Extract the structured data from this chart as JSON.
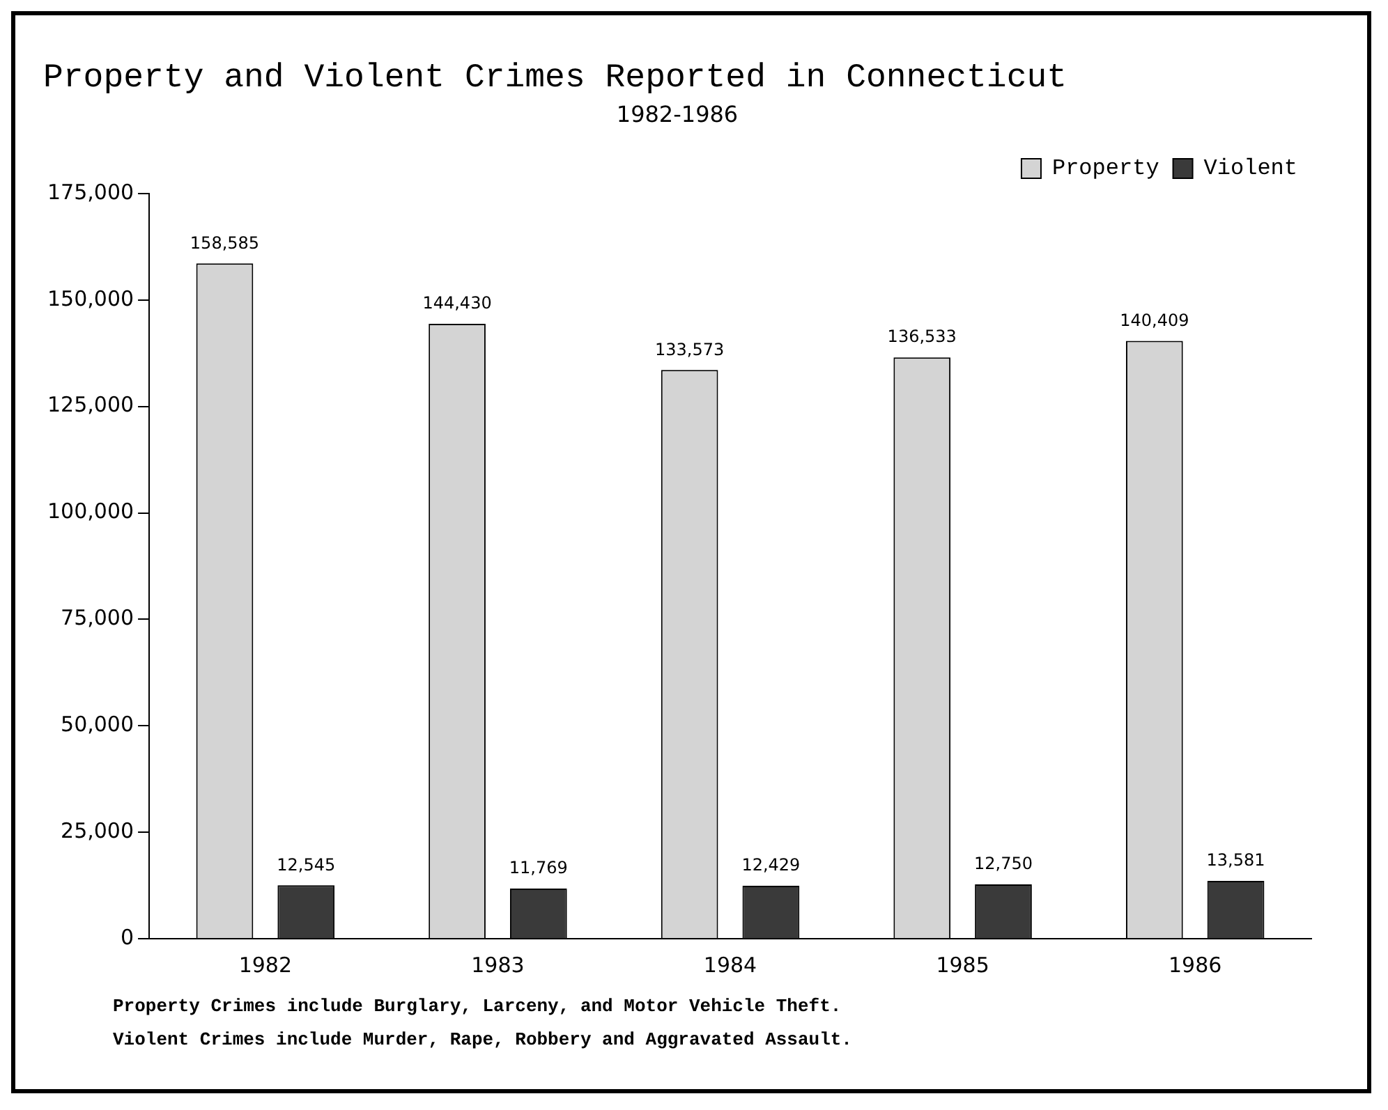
{
  "chart_data": {
    "type": "bar",
    "title": "Property and Violent Crimes Reported in Connecticut",
    "subtitle": "1982-1986",
    "categories": [
      "1982",
      "1983",
      "1984",
      "1985",
      "1986"
    ],
    "series": [
      {
        "name": "Property",
        "color": "#d4d4d4",
        "values": [
          158585,
          144430,
          133573,
          136533,
          140409
        ],
        "value_labels": [
          "158,585",
          "144,430",
          "133,573",
          "136,533",
          "140,409"
        ]
      },
      {
        "name": "Violent",
        "color": "#3a3a3a",
        "values": [
          12545,
          11769,
          12429,
          12750,
          13581
        ],
        "value_labels": [
          "12,545",
          "11,769",
          "12,429",
          "12,750",
          "13,581"
        ]
      }
    ],
    "ylim": [
      0,
      175000
    ],
    "yticks": [
      {
        "value": 0,
        "label": "0"
      },
      {
        "value": 25000,
        "label": "25,000"
      },
      {
        "value": 50000,
        "label": "50,000"
      },
      {
        "value": 75000,
        "label": "75,000"
      },
      {
        "value": 100000,
        "label": "100,000"
      },
      {
        "value": 125000,
        "label": "125,000"
      },
      {
        "value": 150000,
        "label": "150,000"
      },
      {
        "value": 175000,
        "label": "175,000"
      }
    ],
    "grid": false,
    "legend": "top right",
    "annotations": [
      "Property Crimes include Burglary, Larceny, and Motor Vehicle Theft.",
      "Violent Crimes include Murder, Rape, Robbery and Aggravated Assault."
    ]
  }
}
